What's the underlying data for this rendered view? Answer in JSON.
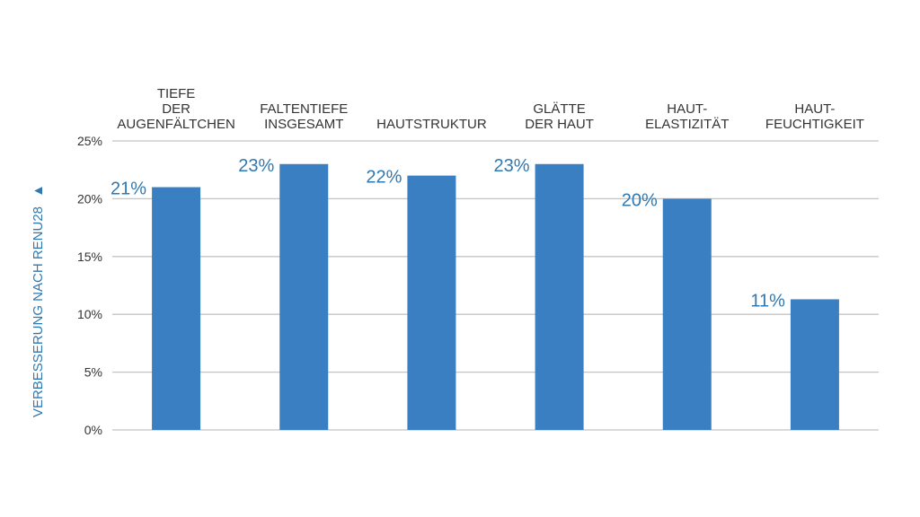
{
  "chart_data": {
    "type": "bar",
    "categories": [
      [
        "TIEFE",
        "DER",
        "AUGENFÄLTCHEN"
      ],
      [
        "FALTENTIEFE",
        "INSGESAMT"
      ],
      [
        "HAUTSTRUKTUR"
      ],
      [
        "GLÄTTE",
        "DER HAUT"
      ],
      [
        "HAUT-",
        "ELASTIZITÄT"
      ],
      [
        "HAUT-",
        "FEUCHTIGKEIT"
      ]
    ],
    "values": [
      21,
      23,
      22,
      23,
      20,
      11.3
    ],
    "data_labels": [
      "21%",
      "23%",
      "22%",
      "23%",
      "20%",
      "11%"
    ],
    "ylabel": "VERBESSERUNG NACH RENU28",
    "ylabel_arrow": "▲",
    "ylim": [
      0,
      25
    ],
    "yticks": [
      0,
      5,
      10,
      15,
      20,
      25
    ],
    "ytick_labels": [
      "0%",
      "5%",
      "10%",
      "15%",
      "20%",
      "25%"
    ],
    "grid": true,
    "colors": {
      "bar": "#3a7fc1",
      "label": "#2f79b3",
      "grid": "#c4c4c4",
      "text": "#333333"
    }
  }
}
